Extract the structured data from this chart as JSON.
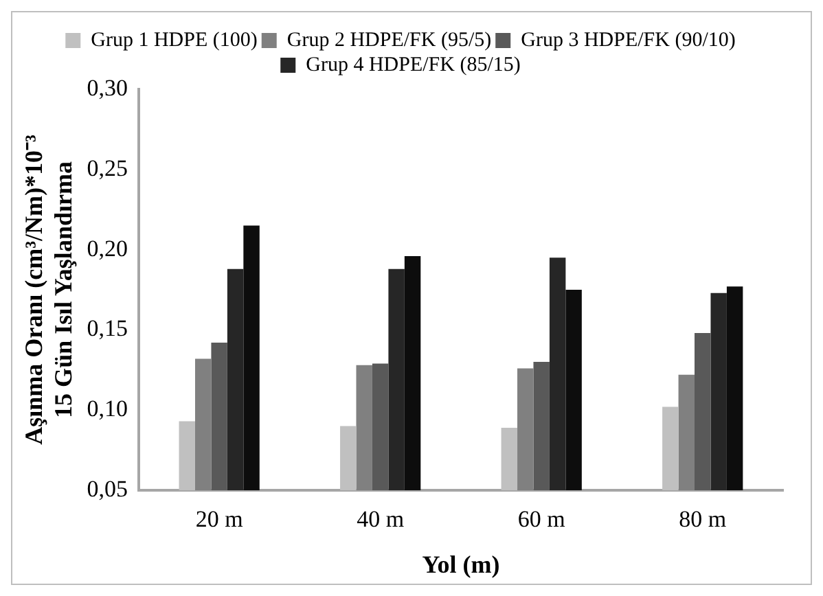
{
  "chart_data": {
    "type": "bar",
    "xlabel": "Yol (m)",
    "ylabel": "Aşınma Oranı (cm³/Nm)*10⁻³\n15 Gün Isıl Yaşlandırma",
    "categories": [
      "20 m",
      "40 m",
      "60 m",
      "80 m"
    ],
    "series": [
      {
        "name": "Grup 1 HDPE (100)",
        "color": "#c0c0c0",
        "values": [
          0.093,
          0.09,
          0.089,
          0.102
        ]
      },
      {
        "name": "Grup 2 HDPE/FK (95/5)",
        "color": "#808080",
        "values": [
          0.132,
          0.128,
          0.126,
          0.122
        ]
      },
      {
        "name": "Grup 3 HDPE/FK (90/10)",
        "color": "#595959",
        "values": [
          0.142,
          0.129,
          0.13,
          0.148
        ]
      },
      {
        "name": "Grup 4 HDPE/FK (85/15)",
        "color": "#262626",
        "values": [
          0.188,
          0.188,
          0.195,
          0.173
        ]
      },
      {
        "color": "#0d0d0d",
        "values": [
          0.215,
          0.196,
          0.175,
          0.177
        ]
      }
    ],
    "ylim": [
      0.05,
      0.3
    ],
    "yticks": [
      {
        "value": 0.05,
        "label": "0,05"
      },
      {
        "value": 0.1,
        "label": "0,10"
      },
      {
        "value": 0.15,
        "label": "0,15"
      },
      {
        "value": 0.2,
        "label": "0,20"
      },
      {
        "value": 0.25,
        "label": "0,25"
      },
      {
        "value": 0.3,
        "label": "0,30"
      }
    ],
    "grid": false,
    "legend": "top"
  }
}
